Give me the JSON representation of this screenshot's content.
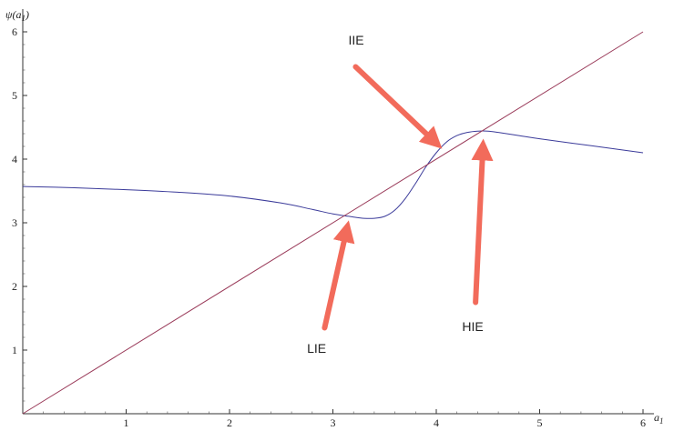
{
  "chart_data": {
    "type": "line",
    "xlabel": "a",
    "xlabel_sub": "1",
    "ylabel_pre": "ψ(a",
    "ylabel_sub": "1",
    "ylabel_post": ")",
    "xlim": [
      0,
      6
    ],
    "ylim": [
      0,
      6.2
    ],
    "x_ticks": [
      1,
      2,
      3,
      4,
      5,
      6
    ],
    "y_ticks": [
      1,
      2,
      3,
      4,
      5,
      6
    ],
    "grid": false,
    "colors": {
      "curve": "#3b3b9a",
      "identity": "#9a3b5a",
      "arrow": "#f26b5b"
    },
    "series": [
      {
        "x": [
          0,
          0.5,
          1,
          1.5,
          2,
          2.5,
          2.8,
          3.0,
          3.2,
          3.3,
          3.4,
          3.5,
          3.6,
          3.7,
          3.8,
          3.9,
          4.0,
          4.1,
          4.2,
          4.3,
          4.4,
          4.5,
          4.6,
          4.8,
          5.0,
          5.5,
          6.0
        ],
        "y": [
          3.57,
          3.55,
          3.52,
          3.48,
          3.42,
          3.31,
          3.21,
          3.14,
          3.09,
          3.07,
          3.07,
          3.1,
          3.2,
          3.38,
          3.62,
          3.88,
          4.1,
          4.27,
          4.37,
          4.42,
          4.44,
          4.44,
          4.42,
          4.37,
          4.32,
          4.21,
          4.1
        ]
      },
      {
        "x": [
          0,
          6
        ],
        "y": [
          0,
          6
        ]
      }
    ],
    "annotations": [
      {
        "text": "IIE",
        "x": 3.15,
        "y": 5.8,
        "arrow_from": [
          3.22,
          5.45
        ],
        "arrow_to": [
          3.98,
          4.28
        ]
      },
      {
        "text": "HIE",
        "x": 4.25,
        "y": 1.3,
        "arrow_from": [
          4.38,
          1.75
        ],
        "arrow_to": [
          4.45,
          4.15
        ]
      },
      {
        "text": "LIE",
        "x": 2.75,
        "y": 0.96,
        "arrow_from": [
          2.92,
          1.35
        ],
        "arrow_to": [
          3.13,
          2.87
        ]
      }
    ]
  }
}
